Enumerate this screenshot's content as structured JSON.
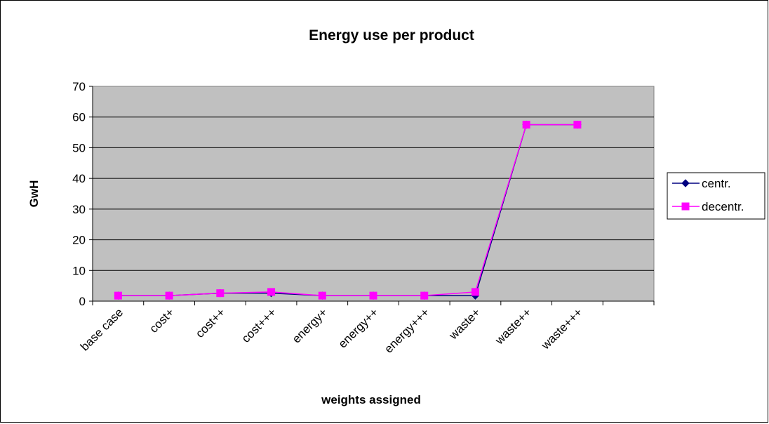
{
  "chart_data": {
    "type": "line",
    "title": "Energy use per product",
    "xlabel": "weights assigned",
    "ylabel": "GwH",
    "categories": [
      "base case",
      "cost+",
      "cost++",
      "cost+++",
      "energy+",
      "energy++",
      "energy+++",
      "waste+",
      "waste++",
      "waste+++"
    ],
    "ylim": [
      0,
      70
    ],
    "yticks": [
      0,
      10,
      20,
      30,
      40,
      50,
      60,
      70
    ],
    "grid": true,
    "legend_position": "right",
    "series": [
      {
        "name": "centr.",
        "color": "#000080",
        "marker": "diamond",
        "values": [
          1.8,
          1.8,
          2.6,
          2.6,
          1.8,
          1.8,
          1.8,
          1.8,
          57.5,
          57.5
        ]
      },
      {
        "name": "decentr.",
        "color": "#ff00ff",
        "marker": "square",
        "values": [
          1.8,
          1.8,
          2.6,
          3.0,
          1.8,
          1.8,
          1.8,
          3.0,
          57.5,
          57.5
        ]
      }
    ]
  }
}
